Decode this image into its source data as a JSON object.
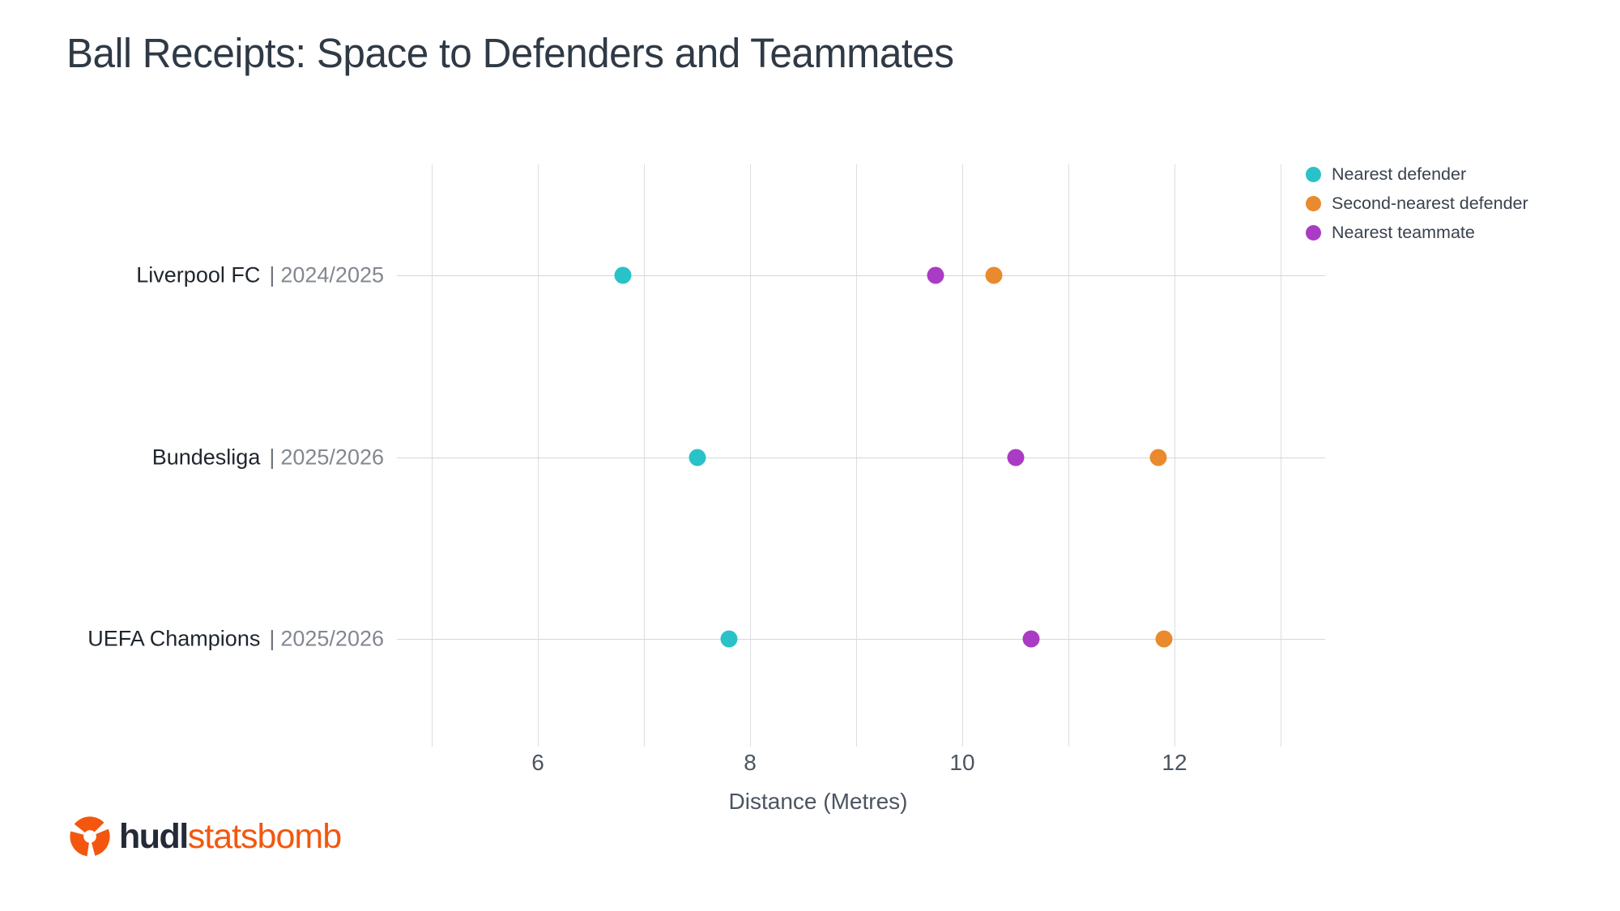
{
  "title": "Ball Receipts: Space to Defenders and Teammates",
  "chart_data": {
    "type": "scatter",
    "variant": "horizontal-dot-plot",
    "title": "Ball Receipts: Space to Defenders and Teammates",
    "xlabel": "Distance (Metres)",
    "xlim": [
      5,
      13
    ],
    "xticks": [
      "6",
      "8",
      "10",
      "12"
    ],
    "grid": "vertical gridlines every 1 metre; one horizontal line per category row",
    "legend_position": "top-right",
    "categories": [
      {
        "name": "Liverpool FC",
        "separator": "|",
        "season": "2024/2025"
      },
      {
        "name": "Bundesliga",
        "separator": "|",
        "season": "2025/2026"
      },
      {
        "name": "UEFA Champions",
        "separator": "|",
        "season": "2025/2026"
      }
    ],
    "series": [
      {
        "name": "Nearest defender",
        "color": "#29C2C8",
        "values": [
          6.8,
          7.5,
          7.8
        ]
      },
      {
        "name": "Second-nearest defender",
        "color": "#EA8A2E",
        "values": [
          10.3,
          11.85,
          11.9
        ]
      },
      {
        "name": "Nearest teammate",
        "color": "#AA3BC4",
        "values": [
          9.75,
          10.5,
          10.65
        ]
      }
    ]
  },
  "logo": {
    "hudl_text": "hudl",
    "statsbomb_text": "statsbomb",
    "icon": "hudl-swirl-icon",
    "icon_color": "#F3570F",
    "hudl_color": "#242B37",
    "statsbomb_color": "#F3570F"
  },
  "colors": {
    "title_text": "#2F3A45",
    "axis_text": "#4B5560",
    "category_name_text": "#1F252D",
    "category_season_text": "#83888F",
    "gridline": "#DCDEE1"
  }
}
